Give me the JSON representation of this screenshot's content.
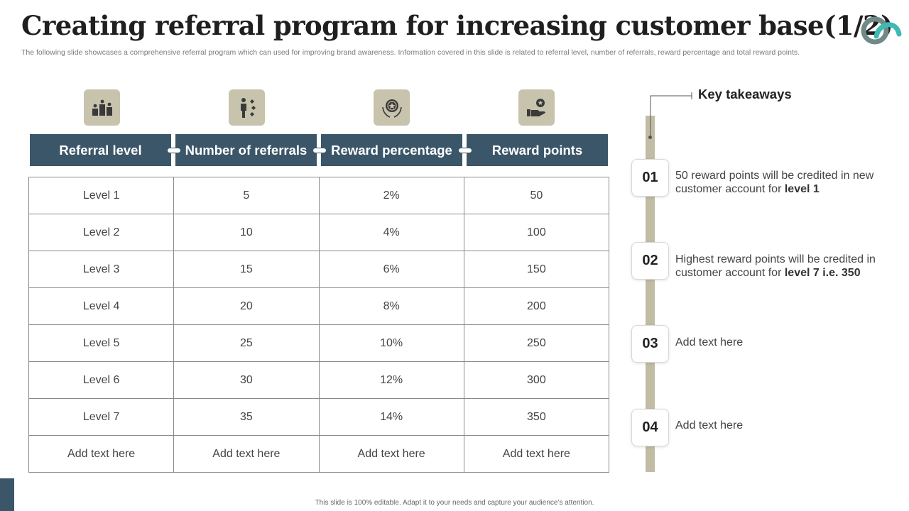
{
  "header": {
    "title": "Creating referral program for increasing customer base(1/2)",
    "subtitle": "The following slide showcases a comprehensive referral program which can used for improving brand awareness. Information covered in this slide is related to referral level, number of referrals, reward percentage and total reward points."
  },
  "table": {
    "columns": [
      "Referral level",
      "Number of referrals",
      "Reward percentage",
      "Reward points"
    ],
    "column_icons": [
      "podium-icon",
      "person-ranking-icon",
      "award-badge-icon",
      "hand-reward-icon"
    ],
    "rows": [
      [
        "Level 1",
        "5",
        "2%",
        "50"
      ],
      [
        "Level 2",
        "10",
        "4%",
        "100"
      ],
      [
        "Level 3",
        "15",
        "6%",
        "150"
      ],
      [
        "Level 4",
        "20",
        "8%",
        "200"
      ],
      [
        "Level 5",
        "25",
        "10%",
        "250"
      ],
      [
        "Level 6",
        "30",
        "12%",
        "300"
      ],
      [
        "Level 7",
        "35",
        "14%",
        "350"
      ],
      [
        "Add text here",
        "Add text here",
        "Add text here",
        "Add text here"
      ]
    ]
  },
  "takeaways": {
    "title": "Key takeaways",
    "items": [
      {
        "num": "01",
        "text": "50 reward points will be credited in new customer account for ",
        "bold": "level 1"
      },
      {
        "num": "02",
        "text": "Highest reward points will be credited in customer account for ",
        "bold": "level 7 i.e. 350"
      },
      {
        "num": "03",
        "text": "Add text here",
        "bold": ""
      },
      {
        "num": "04",
        "text": "Add text here",
        "bold": ""
      }
    ]
  },
  "footer": {
    "note": "This slide is 100% editable. Adapt it to your needs and capture your audience’s attention."
  },
  "colors": {
    "header_bg": "#3b5668",
    "icon_tile_bg": "#c8c3ac",
    "timeline": "#c2bca4",
    "logo_gray": "#6f8a87",
    "logo_teal": "#3fb9b4"
  }
}
